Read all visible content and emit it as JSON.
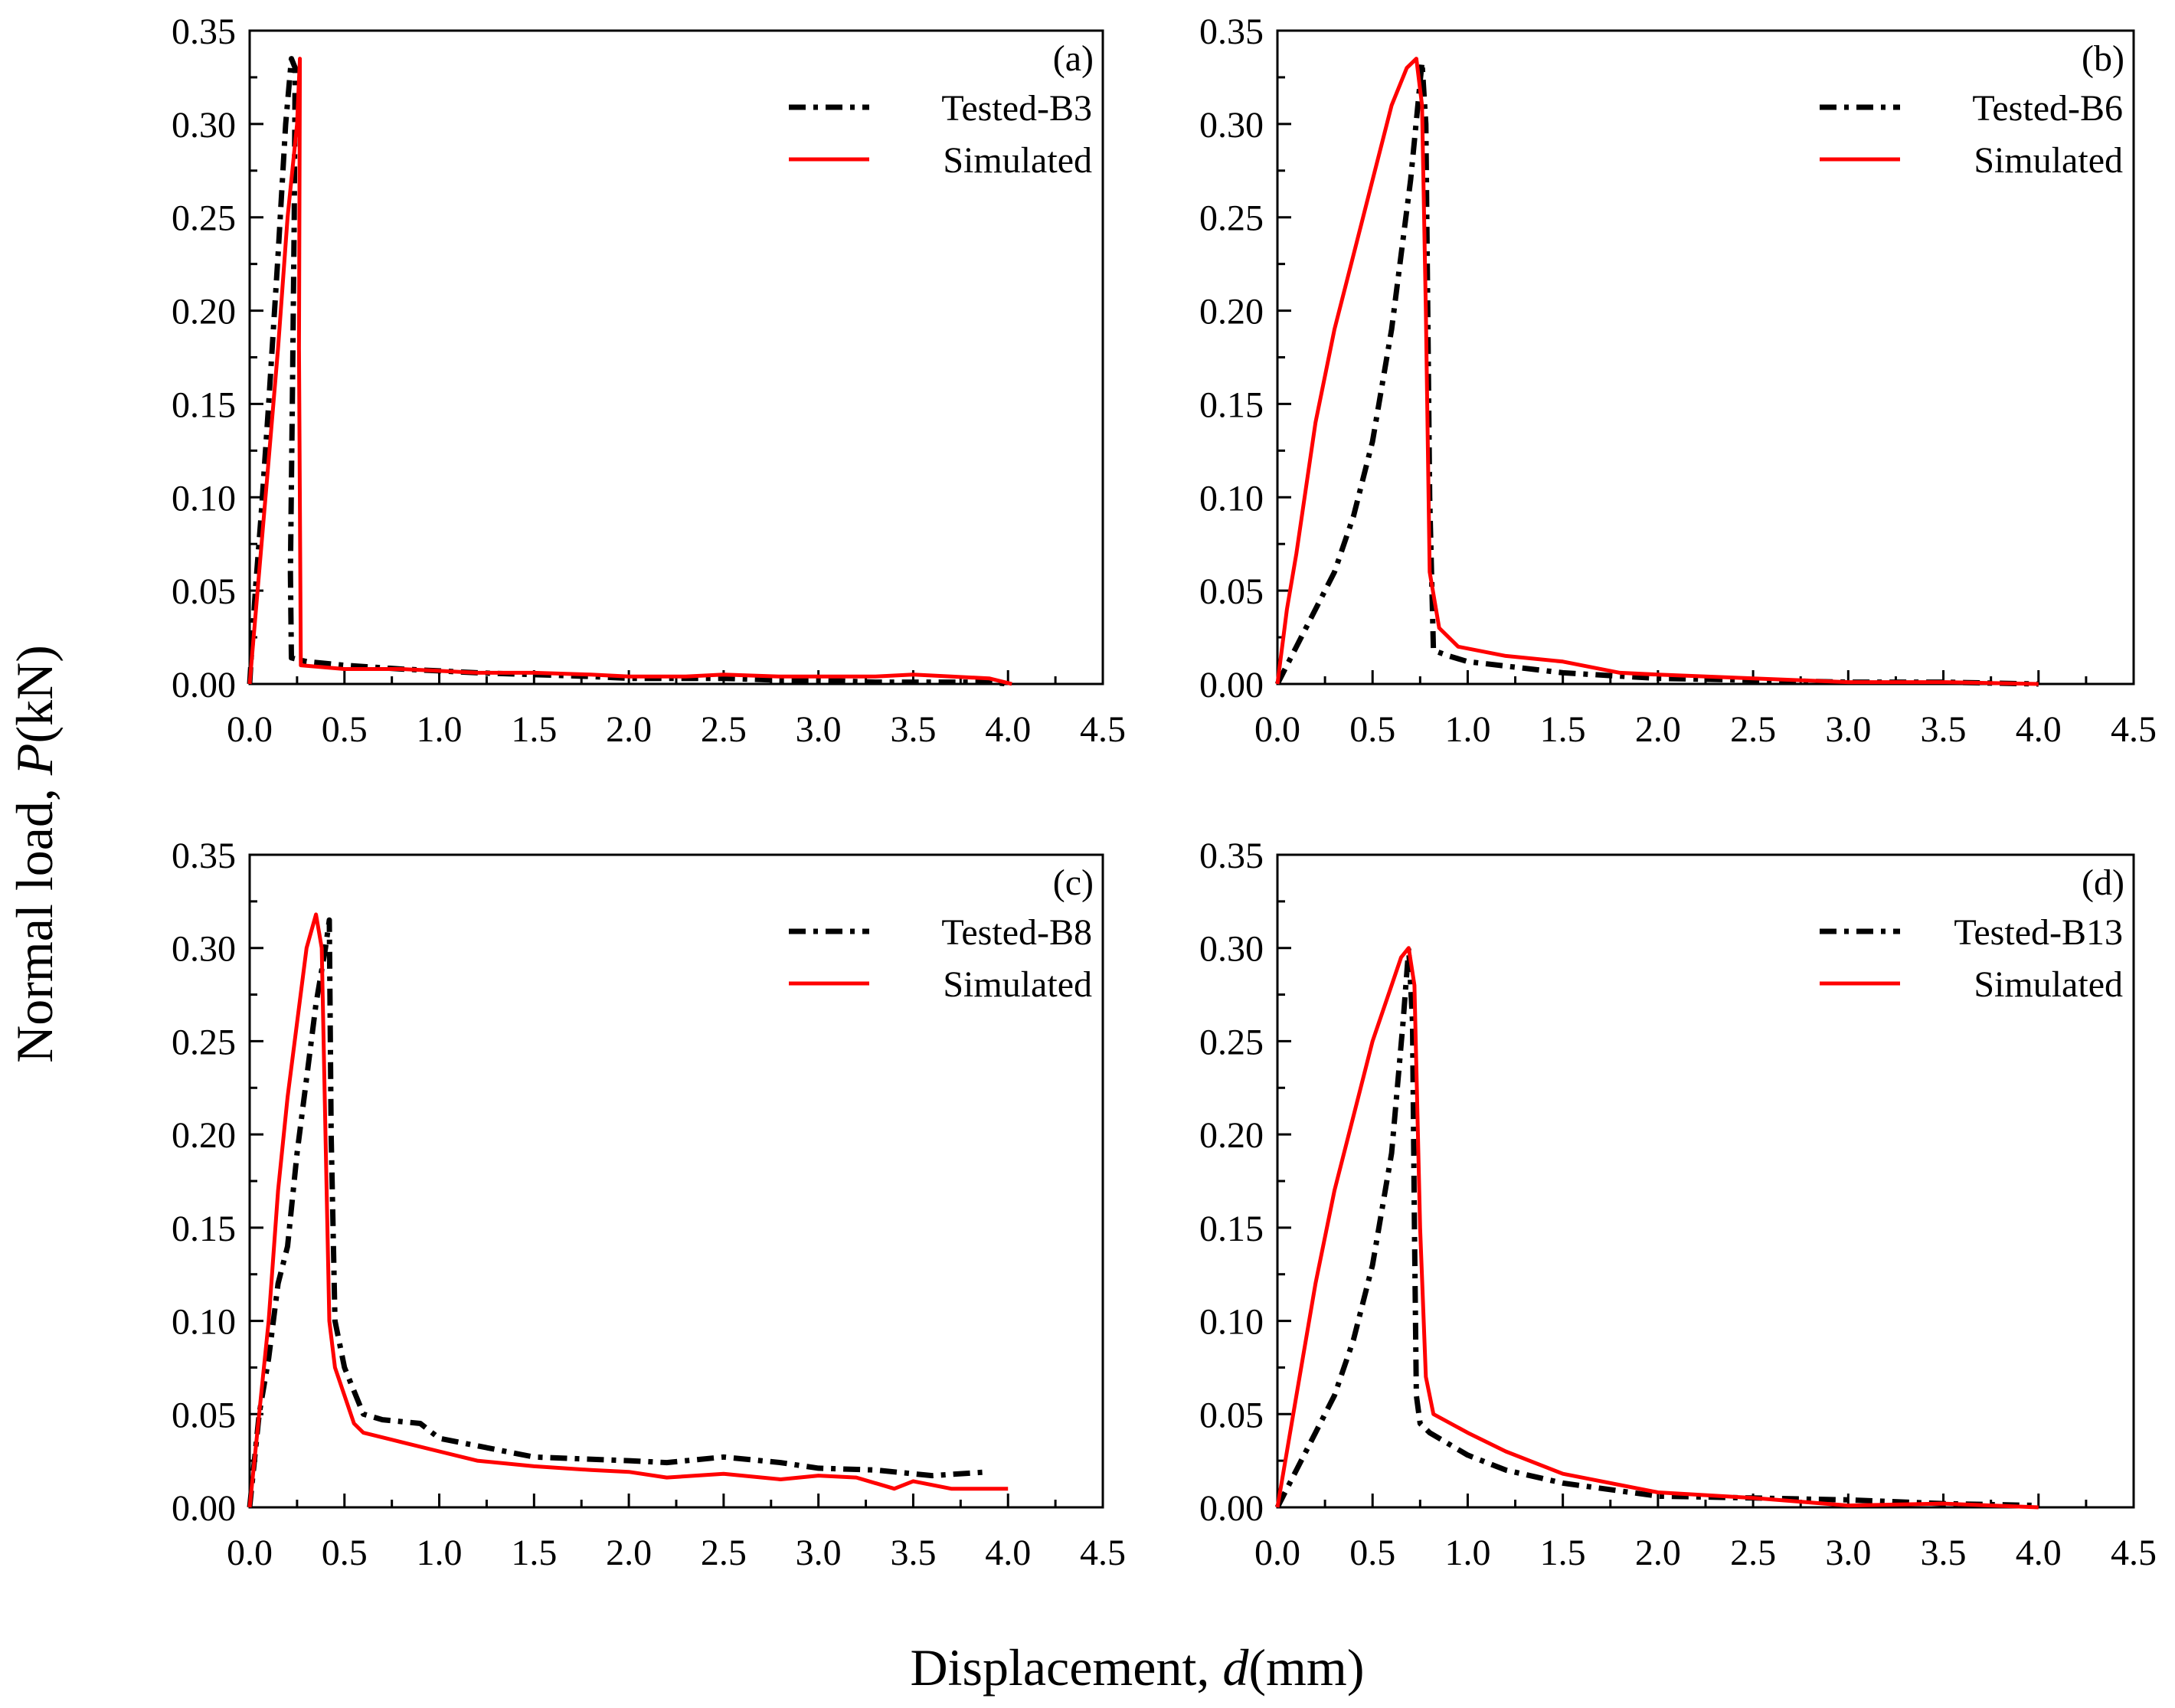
{
  "figure": {
    "ylabel_prefix": "Normal load, ",
    "ylabel_symbol": "P",
    "ylabel_unit": "(kN)",
    "xlabel_prefix": "Displacement, ",
    "xlabel_symbol": "d",
    "xlabel_unit": "(mm)",
    "colors": {
      "tested": "#000000",
      "simulated": "#ff0000"
    }
  },
  "chart_data": [
    {
      "type": "line",
      "label": "(a)",
      "xlim": [
        0,
        4.5
      ],
      "ylim": [
        0,
        0.35
      ],
      "xticks": [
        "0.0",
        "0.5",
        "1.0",
        "1.5",
        "2.0",
        "2.5",
        "3.0",
        "3.5",
        "4.0",
        "4.5"
      ],
      "yticks": [
        "0.00",
        "0.05",
        "0.10",
        "0.15",
        "0.20",
        "0.25",
        "0.30",
        "0.35"
      ],
      "series": [
        {
          "name": "Tested-B3",
          "style": "dashdot",
          "color": "#000000",
          "x": [
            0,
            0.03,
            0.06,
            0.1,
            0.15,
            0.19,
            0.22,
            0.24,
            0.235,
            0.225,
            0.215,
            0.22,
            0.3,
            0.5,
            0.8,
            1.0,
            1.2,
            1.5,
            1.8,
            2.0,
            2.3,
            2.5,
            2.8,
            3.0,
            3.3,
            3.6,
            3.9,
            4.0
          ],
          "y": [
            0.0,
            0.05,
            0.09,
            0.15,
            0.23,
            0.3,
            0.335,
            0.33,
            0.25,
            0.15,
            0.06,
            0.014,
            0.012,
            0.01,
            0.008,
            0.007,
            0.006,
            0.005,
            0.004,
            0.003,
            0.003,
            0.003,
            0.002,
            0.002,
            0.001,
            0.001,
            0.001,
            0.0
          ]
        },
        {
          "name": "Simulated",
          "style": "solid",
          "color": "#ff0000",
          "x": [
            0,
            0.05,
            0.1,
            0.15,
            0.2,
            0.25,
            0.265,
            0.26,
            0.27,
            0.5,
            0.8,
            1.0,
            1.2,
            1.5,
            1.8,
            2.0,
            2.3,
            2.5,
            2.8,
            3.0,
            3.3,
            3.5,
            3.7,
            3.9,
            4.02
          ],
          "y": [
            0.0,
            0.06,
            0.12,
            0.18,
            0.25,
            0.3,
            0.335,
            0.18,
            0.01,
            0.008,
            0.008,
            0.007,
            0.006,
            0.006,
            0.005,
            0.004,
            0.004,
            0.005,
            0.004,
            0.004,
            0.004,
            0.005,
            0.004,
            0.003,
            0.0
          ]
        }
      ]
    },
    {
      "type": "line",
      "label": "(b)",
      "xlim": [
        0,
        4.5
      ],
      "ylim": [
        0,
        0.35
      ],
      "xticks": [
        "0.0",
        "0.5",
        "1.0",
        "1.5",
        "2.0",
        "2.5",
        "3.0",
        "3.5",
        "4.0",
        "4.5"
      ],
      "yticks": [
        "0.00",
        "0.05",
        "0.10",
        "0.15",
        "0.20",
        "0.25",
        "0.30",
        "0.35"
      ],
      "series": [
        {
          "name": "Tested-B6",
          "style": "dashdot",
          "color": "#000000",
          "x": [
            0,
            0.1,
            0.2,
            0.3,
            0.4,
            0.5,
            0.6,
            0.7,
            0.76,
            0.78,
            0.79,
            0.8,
            0.82,
            0.9,
            1.0,
            1.5,
            2.0,
            2.5,
            3.0,
            3.5,
            4.0
          ],
          "y": [
            0.0,
            0.02,
            0.04,
            0.06,
            0.09,
            0.13,
            0.19,
            0.27,
            0.333,
            0.3,
            0.2,
            0.1,
            0.018,
            0.015,
            0.012,
            0.006,
            0.003,
            0.002,
            0.001,
            0.001,
            0.0
          ]
        },
        {
          "name": "Simulated",
          "style": "solid",
          "color": "#ff0000",
          "x": [
            0,
            0.05,
            0.1,
            0.2,
            0.3,
            0.4,
            0.5,
            0.6,
            0.68,
            0.73,
            0.76,
            0.78,
            0.8,
            0.85,
            0.95,
            1.2,
            1.5,
            1.8,
            2.0,
            2.5,
            3.0,
            3.5,
            4.0
          ],
          "y": [
            0.0,
            0.04,
            0.07,
            0.14,
            0.19,
            0.23,
            0.27,
            0.31,
            0.33,
            0.335,
            0.31,
            0.2,
            0.06,
            0.03,
            0.02,
            0.015,
            0.012,
            0.006,
            0.005,
            0.003,
            0.001,
            0.001,
            0.0
          ]
        }
      ]
    },
    {
      "type": "line",
      "label": "(c)",
      "xlim": [
        0,
        4.5
      ],
      "ylim": [
        0,
        0.35
      ],
      "xticks": [
        "0.0",
        "0.5",
        "1.0",
        "1.5",
        "2.0",
        "2.5",
        "3.0",
        "3.5",
        "4.0",
        "4.5"
      ],
      "yticks": [
        "0.00",
        "0.05",
        "0.10",
        "0.15",
        "0.20",
        "0.25",
        "0.30",
        "0.35"
      ],
      "series": [
        {
          "name": "Tested-B8",
          "style": "dashdot",
          "color": "#000000",
          "x": [
            0,
            0.05,
            0.1,
            0.15,
            0.2,
            0.25,
            0.3,
            0.35,
            0.4,
            0.42,
            0.43,
            0.45,
            0.5,
            0.6,
            0.7,
            0.9,
            1.0,
            1.2,
            1.5,
            2.0,
            2.2,
            2.5,
            2.8,
            3.0,
            3.3,
            3.6,
            3.9
          ],
          "y": [
            0.0,
            0.05,
            0.08,
            0.12,
            0.14,
            0.19,
            0.23,
            0.27,
            0.3,
            0.315,
            0.2,
            0.1,
            0.075,
            0.05,
            0.047,
            0.045,
            0.037,
            0.033,
            0.027,
            0.025,
            0.024,
            0.027,
            0.024,
            0.021,
            0.02,
            0.017,
            0.019
          ]
        },
        {
          "name": "Simulated",
          "style": "solid",
          "color": "#ff0000",
          "x": [
            0,
            0.05,
            0.1,
            0.15,
            0.2,
            0.25,
            0.3,
            0.35,
            0.38,
            0.4,
            0.42,
            0.45,
            0.5,
            0.55,
            0.6,
            0.8,
            1.0,
            1.2,
            1.5,
            1.8,
            2.0,
            2.2,
            2.5,
            2.8,
            3.0,
            3.2,
            3.4,
            3.5,
            3.7,
            3.9,
            4.0
          ],
          "y": [
            0.0,
            0.05,
            0.1,
            0.17,
            0.22,
            0.26,
            0.3,
            0.318,
            0.3,
            0.2,
            0.1,
            0.075,
            0.06,
            0.045,
            0.04,
            0.035,
            0.03,
            0.025,
            0.022,
            0.02,
            0.019,
            0.016,
            0.018,
            0.015,
            0.017,
            0.016,
            0.01,
            0.014,
            0.01,
            0.01,
            0.01
          ]
        }
      ]
    },
    {
      "type": "line",
      "label": "(d)",
      "xlim": [
        0,
        4.5
      ],
      "ylim": [
        0,
        0.35
      ],
      "xticks": [
        "0.0",
        "0.5",
        "1.0",
        "1.5",
        "2.0",
        "2.5",
        "3.0",
        "3.5",
        "4.0",
        "4.5"
      ],
      "yticks": [
        "0.00",
        "0.05",
        "0.10",
        "0.15",
        "0.20",
        "0.25",
        "0.30",
        "0.35"
      ],
      "series": [
        {
          "name": "Tested-B13",
          "style": "dashdot",
          "color": "#000000",
          "x": [
            0,
            0.1,
            0.2,
            0.3,
            0.4,
            0.5,
            0.6,
            0.66,
            0.69,
            0.71,
            0.72,
            0.73,
            0.75,
            0.8,
            1.0,
            1.2,
            1.5,
            2.0,
            2.5,
            3.0,
            3.5,
            4.0
          ],
          "y": [
            0.0,
            0.02,
            0.04,
            0.06,
            0.09,
            0.13,
            0.19,
            0.26,
            0.3,
            0.26,
            0.15,
            0.06,
            0.045,
            0.04,
            0.028,
            0.02,
            0.013,
            0.006,
            0.005,
            0.004,
            0.002,
            0.001
          ]
        },
        {
          "name": "Simulated",
          "style": "solid",
          "color": "#ff0000",
          "x": [
            0,
            0.05,
            0.1,
            0.2,
            0.3,
            0.4,
            0.5,
            0.6,
            0.65,
            0.69,
            0.72,
            0.75,
            0.78,
            0.82,
            1.0,
            1.2,
            1.5,
            2.0,
            2.5,
            3.0,
            3.5,
            4.0
          ],
          "y": [
            0.0,
            0.03,
            0.06,
            0.12,
            0.17,
            0.21,
            0.25,
            0.28,
            0.295,
            0.3,
            0.28,
            0.15,
            0.07,
            0.05,
            0.04,
            0.03,
            0.018,
            0.008,
            0.005,
            0.001,
            0.002,
            0.0
          ]
        }
      ]
    }
  ]
}
